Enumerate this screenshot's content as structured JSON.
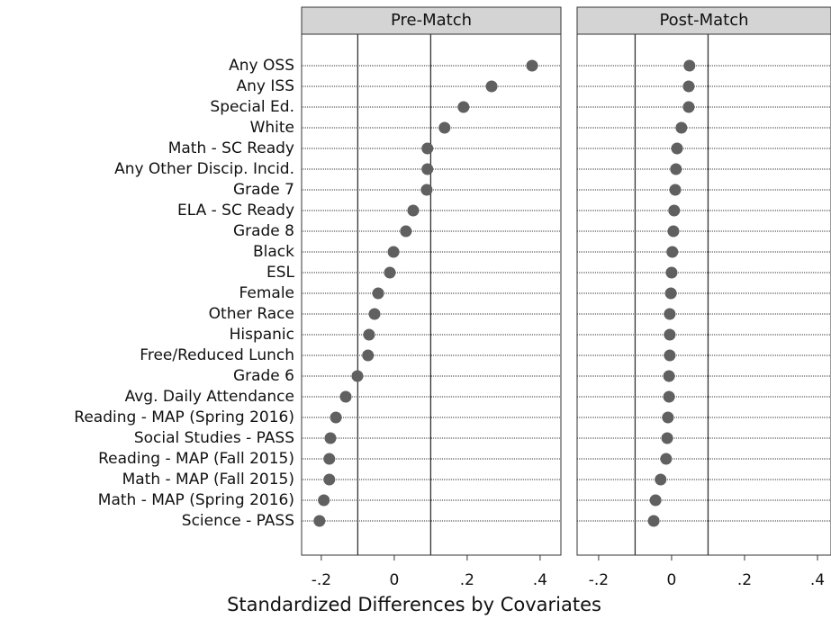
{
  "chart_data": {
    "type": "dot",
    "x_label": "Standardized Differences by Covariates",
    "color": "#606060",
    "reference_lines": [
      -0.1,
      0.1
    ],
    "grid": true,
    "categories": [
      "Any OSS",
      "Any ISS",
      "Special Ed.",
      "White",
      "Math - SC Ready",
      "Any Other Discip. Incid.",
      "Grade 7",
      "ELA - SC Ready",
      "Grade 8",
      "Black",
      "ESL",
      "Female",
      "Other Race",
      "Hispanic",
      "Free/Reduced Lunch",
      "Grade 6",
      "Avg. Daily Attendance",
      "Reading - MAP (Spring 2016)",
      "Social Studies - PASS",
      "Reading - MAP (Fall 2015)",
      "Math - MAP (Fall 2015)",
      "Math - MAP (Spring 2016)",
      "Science - PASS"
    ],
    "facets": [
      {
        "title": "Pre-Match",
        "values": [
          0.378,
          0.267,
          0.19,
          0.138,
          0.091,
          0.091,
          0.089,
          0.052,
          0.032,
          -0.002,
          -0.012,
          -0.044,
          -0.054,
          -0.069,
          -0.072,
          -0.101,
          -0.133,
          -0.16,
          -0.175,
          -0.178,
          -0.178,
          -0.193,
          -0.205
        ],
        "xlim": [
          -0.254,
          0.457
        ],
        "xticks": [
          {
            "value": -0.2,
            "label": "-.2"
          },
          0,
          {
            "value": 0.2,
            "label": ".2"
          },
          {
            "value": 0.4,
            "label": ".4"
          }
        ]
      },
      {
        "title": "Post-Match",
        "values": [
          0.049,
          0.047,
          0.047,
          0.027,
          0.015,
          0.012,
          0.01,
          0.007,
          0.005,
          0.002,
          0,
          -0.002,
          -0.005,
          -0.005,
          -0.005,
          -0.007,
          -0.007,
          -0.01,
          -0.012,
          -0.015,
          -0.03,
          -0.044,
          -0.049
        ],
        "xlim": [
          -0.259,
          0.437
        ],
        "xticks": [
          {
            "value": -0.2,
            "label": "-.2"
          },
          0,
          {
            "value": 0.2,
            "label": ".2"
          },
          {
            "value": 0.4,
            "label": ".4"
          }
        ]
      }
    ]
  }
}
